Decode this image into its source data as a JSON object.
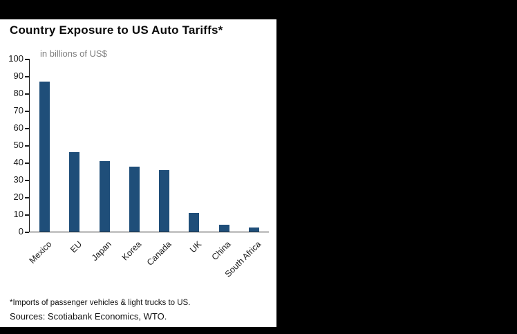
{
  "panel": {
    "title": "Country Exposure to US Auto Tariffs*",
    "subtitle": "in billions of US$",
    "footnote_1": "*Imports of passenger vehicles & light trucks to US.",
    "footnote_2": "Sources: Scotiabank Economics, WTO."
  },
  "colors": {
    "bar": "#1f4e79",
    "axis": "#1a1a1a",
    "background_frame": "#000000",
    "panel_background": "#ffffff",
    "subtitle_gray": "#7f7f7f"
  },
  "chart_data": {
    "type": "bar",
    "title": "Country Exposure to US Auto Tariffs*",
    "subtitle": "in billions of US$",
    "categories": [
      "Mexico",
      "EU",
      "Japan",
      "Korea",
      "Canada",
      "UK",
      "China",
      "South Africa"
    ],
    "values": [
      87,
      46,
      41,
      37.5,
      35.5,
      11,
      4,
      2.5
    ],
    "xlabel": "",
    "ylabel": "in billions of US$",
    "ylim": [
      0,
      100
    ],
    "ytick_step": 10,
    "grid": false,
    "legend": "none",
    "bar_color": "#1f4e79"
  }
}
